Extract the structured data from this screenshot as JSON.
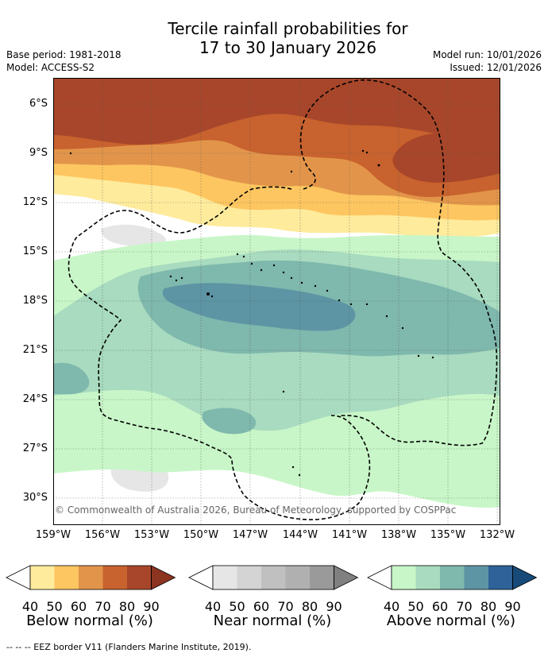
{
  "title": {
    "line1": "Tercile rainfall probabilities for",
    "line2": "17 to 30 January 2026"
  },
  "meta": {
    "base_period": "Base period: 1981-2018",
    "model": "Model: ACCESS-S2",
    "model_run": "Model run: 10/01/2026",
    "issued": "Issued: 12/01/2026"
  },
  "map": {
    "lat_labels": [
      "6°S",
      "9°S",
      "12°S",
      "15°S",
      "18°S",
      "21°S",
      "24°S",
      "27°S",
      "30°S"
    ],
    "lon_labels": [
      "159°W",
      "156°W",
      "153°W",
      "150°W",
      "147°W",
      "144°W",
      "141°W",
      "138°W",
      "135°W",
      "132°W"
    ],
    "copyright": "© Commonwealth of Australia 2026, Bureau of Meteorology, supported by COSPPac"
  },
  "colorbars": [
    {
      "title": "Below normal (%)",
      "ticks": [
        "40",
        "50",
        "60",
        "70",
        "80",
        "90"
      ],
      "colors": [
        "#ffffff",
        "#feeb9c",
        "#fdc661",
        "#e2954a",
        "#c8622e",
        "#a7462a",
        "#8c3420"
      ]
    },
    {
      "title": "Near normal (%)",
      "ticks": [
        "40",
        "50",
        "60",
        "70",
        "80",
        "90"
      ],
      "colors": [
        "#ffffff",
        "#e6e6e6",
        "#d4d4d4",
        "#c0c0c0",
        "#b0b0b0",
        "#9a9a9a",
        "#808080"
      ]
    },
    {
      "title": "Above normal (%)",
      "ticks": [
        "40",
        "50",
        "60",
        "70",
        "80",
        "90"
      ],
      "colors": [
        "#ffffff",
        "#c8f6c8",
        "#a8dbbf",
        "#7fb8ad",
        "#5d95a4",
        "#2e6298",
        "#174a78"
      ]
    }
  ],
  "footer": "--  --  -- EEZ border V11 (Flanders Marine Institute, 2019).",
  "colors": {
    "below": [
      "#feeb9c",
      "#fdc661",
      "#e2954a",
      "#c8622e",
      "#a7462a"
    ],
    "near": [
      "#e6e6e6",
      "#d4d4d4"
    ],
    "above": [
      "#c8f6c8",
      "#a8dbbf",
      "#7fb8ad",
      "#5d95a4"
    ]
  }
}
